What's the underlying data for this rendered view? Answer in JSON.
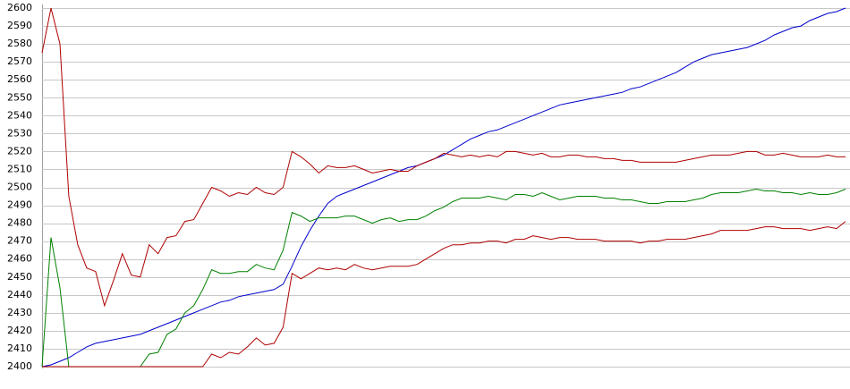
{
  "chart_data": {
    "type": "line",
    "categories": [
      null,
      null,
      null,
      null,
      null,
      null,
      null,
      null,
      null,
      null,
      null,
      null,
      null,
      null,
      null,
      null,
      null,
      null,
      null,
      null,
      null,
      null,
      null,
      null,
      null,
      null,
      null,
      null,
      null,
      null,
      null,
      null,
      null,
      null,
      null,
      null,
      null,
      null,
      null,
      null,
      null,
      null,
      null,
      null,
      null,
      null,
      null,
      null,
      null,
      null,
      null,
      null,
      null,
      null,
      null,
      null,
      null,
      null,
      null,
      null,
      null,
      null,
      null,
      null,
      null,
      null,
      null,
      null,
      null,
      null,
      null,
      null,
      null,
      null,
      null,
      null,
      null,
      null,
      null,
      null,
      null,
      null,
      null,
      null,
      null,
      null,
      null,
      null,
      null,
      null,
      null
    ],
    "series": [
      {
        "color": "#0000cc",
        "values": [
          2400,
          2401,
          2403,
          2405,
          2408,
          2411,
          2413,
          2414,
          2415,
          2416,
          2417,
          2418,
          2420,
          2422,
          2424,
          2426,
          2428,
          2430,
          2432,
          2434,
          2436,
          2437,
          2439,
          2440,
          2441,
          2442,
          2443,
          2446,
          2456,
          2467,
          2476,
          2484,
          2491,
          2495,
          2497,
          2499,
          2501,
          2503,
          2505,
          2507,
          2509,
          2511,
          2512,
          2514,
          2516,
          2518,
          2521,
          2524,
          2527,
          2529,
          2531,
          2532,
          2534,
          2536,
          2538,
          2540,
          2542,
          2544,
          2546,
          2547,
          2548,
          2549,
          2550,
          2551,
          2552,
          2553,
          2555,
          2556,
          2558,
          2560,
          2562,
          2564,
          2567,
          2570,
          2572,
          2574,
          2575,
          2576,
          2577,
          2578,
          2580,
          2582,
          2585,
          2587,
          2589,
          2590,
          2593,
          2595,
          2597,
          2598,
          2600
        ]
      },
      {
        "color": "#008000",
        "values": [
          2400,
          2472,
          2444,
          2400,
          2400,
          2400,
          2400,
          2400,
          2400,
          2400,
          2400,
          2400,
          2407,
          2408,
          2418,
          2421,
          2430,
          2434,
          2443,
          2454,
          2452,
          2452,
          2453,
          2453,
          2457,
          2455,
          2454,
          2465,
          2486,
          2484,
          2481,
          2483,
          2483,
          2483,
          2484,
          2484,
          2482,
          2480,
          2482,
          2483,
          2481,
          2482,
          2482,
          2484,
          2487,
          2489,
          2492,
          2494,
          2494,
          2494,
          2495,
          2494,
          2493,
          2496,
          2496,
          2495,
          2497,
          2495,
          2493,
          2494,
          2495,
          2495,
          2495,
          2494,
          2494,
          2493,
          2493,
          2492,
          2491,
          2491,
          2492,
          2492,
          2492,
          2493,
          2494,
          2496,
          2497,
          2497,
          2497,
          2498,
          2499,
          2498,
          2498,
          2497,
          2497,
          2496,
          2497,
          2496,
          2496,
          2497,
          2499
        ]
      },
      {
        "color": "#b00000",
        "values": [
          2575,
          2600,
          2580,
          2495,
          2468,
          2455,
          2453,
          2434,
          2448,
          2463,
          2451,
          2450,
          2468,
          2463,
          2472,
          2473,
          2481,
          2482,
          2491,
          2500,
          2498,
          2495,
          2497,
          2496,
          2500,
          2497,
          2496,
          2500,
          2520,
          2517,
          2513,
          2508,
          2512,
          2511,
          2511,
          2512,
          2510,
          2508,
          2509,
          2510,
          2509,
          2509,
          2512,
          2514,
          2516,
          2519,
          2518,
          2517,
          2518,
          2517,
          2518,
          2517,
          2520,
          2520,
          2519,
          2518,
          2519,
          2517,
          2517,
          2518,
          2518,
          2517,
          2517,
          2516,
          2516,
          2515,
          2515,
          2514,
          2514,
          2514,
          2514,
          2514,
          2515,
          2516,
          2517,
          2518,
          2518,
          2518,
          2519,
          2520,
          2520,
          2518,
          2518,
          2519,
          2518,
          2517,
          2517,
          2517,
          2518,
          2517,
          2517
        ]
      },
      {
        "color": "#b00000",
        "values": [
          2400,
          2400,
          2400,
          2400,
          2400,
          2400,
          2400,
          2400,
          2400,
          2400,
          2400,
          2400,
          2400,
          2400,
          2400,
          2400,
          2400,
          2400,
          2400,
          2407,
          2405,
          2408,
          2407,
          2411,
          2416,
          2412,
          2413,
          2422,
          2452,
          2449,
          2452,
          2455,
          2454,
          2455,
          2454,
          2457,
          2455,
          2454,
          2455,
          2456,
          2456,
          2456,
          2457,
          2460,
          2463,
          2466,
          2468,
          2468,
          2469,
          2469,
          2470,
          2470,
          2469,
          2471,
          2471,
          2473,
          2472,
          2471,
          2472,
          2472,
          2471,
          2471,
          2471,
          2470,
          2470,
          2470,
          2470,
          2469,
          2470,
          2470,
          2471,
          2471,
          2471,
          2472,
          2473,
          2474,
          2476,
          2476,
          2476,
          2476,
          2477,
          2478,
          2478,
          2477,
          2477,
          2477,
          2476,
          2477,
          2478,
          2477,
          2481
        ]
      }
    ],
    "ylim": [
      2400,
      2600
    ],
    "yticks": [
      2400,
      2410,
      2420,
      2430,
      2440,
      2450,
      2460,
      2470,
      2480,
      2490,
      2500,
      2510,
      2520,
      2530,
      2540,
      2550,
      2560,
      2570,
      2580,
      2590,
      2600
    ],
    "grid": true
  }
}
